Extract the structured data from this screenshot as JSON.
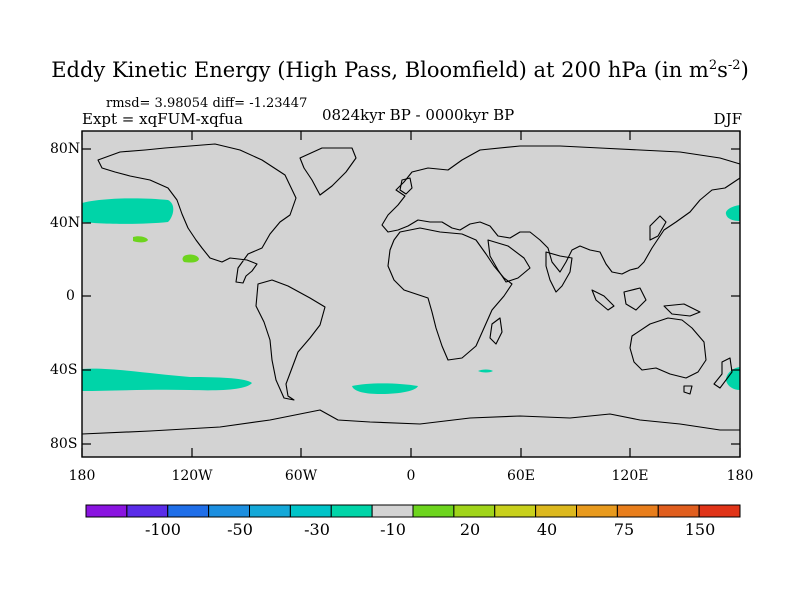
{
  "title": {
    "main": "Eddy Kinetic Energy (High Pass, Bloomfield) at 200 hPa (in m",
    "unit_sup1": "2",
    "unit_mid": "s",
    "unit_sup2": "-2",
    "unit_close": ")"
  },
  "stats_line": "rmsd= 3.98054 diff= -1.23447",
  "experiment_line": "Expt = xqFUM-xqfua",
  "period": "0824kyr BP - 0000kyr BP",
  "season": "DJF",
  "map": {
    "lat_labels": [
      "80N",
      "40N",
      "0",
      "40S",
      "80S"
    ],
    "lon_labels": [
      "180",
      "120W",
      "60W",
      "0",
      "60E",
      "120E",
      "180"
    ],
    "land_color": "#d3d3d3",
    "anomaly_patches": [
      {
        "region": "North Pacific (west of North America)",
        "category": "-10",
        "color": "#00d4a8"
      },
      {
        "region": "Northwest Pacific near dateline",
        "category": "-10",
        "color": "#00d4a8"
      },
      {
        "region": "Central North Pacific",
        "category": "20",
        "color": "#6dd41e"
      },
      {
        "region": "Subtropical North Pacific",
        "category": "20",
        "color": "#6dd41e"
      },
      {
        "region": "South Pacific 40-50S",
        "category": "-10",
        "color": "#00d4a8"
      },
      {
        "region": "South Atlantic 45-50S",
        "category": "-10",
        "color": "#00d4a8"
      },
      {
        "region": "Southern Indian Ocean",
        "category": "-10",
        "color": "#00d4a8"
      },
      {
        "region": "Southwest Pacific near dateline",
        "category": "-10",
        "color": "#00d4a8"
      }
    ]
  },
  "colorbar": {
    "labels": [
      "-100",
      "-50",
      "-30",
      "-10",
      "20",
      "40",
      "75",
      "150"
    ],
    "colors": [
      "#8a14e0",
      "#5a2ce8",
      "#1f6ee8",
      "#1c8fe0",
      "#14a8d8",
      "#00c4c8",
      "#00d4a8",
      "#d3d3d3",
      "#6dd41e",
      "#a0d41a",
      "#c8d01c",
      "#dcb81e",
      "#e89a1e",
      "#e87e1c",
      "#e05e1e",
      "#e03418"
    ]
  }
}
